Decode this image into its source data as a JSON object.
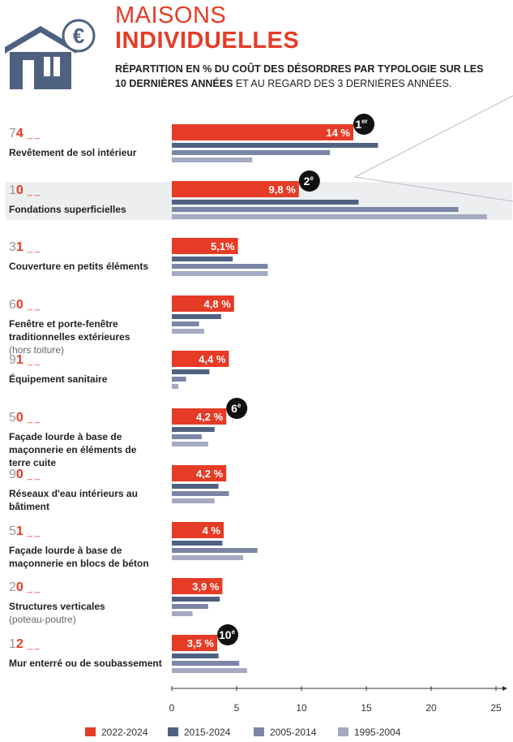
{
  "header": {
    "icon": "house-euro-icon",
    "title_line1": "MAISONS",
    "title_line2": "INDIVIDUELLES",
    "subtitle_bold_1": "RÉPARTITION EN % DU COÛT DES DÉSORDRES PAR TYPOLOGIE SUR LES 10 DERNIÈRES ANNÉES",
    "subtitle_normal_2": " ET AU REGARD DES 3 DERNIÈRES ANNÉES."
  },
  "colors": {
    "accent": "#e63b26",
    "s2015": "#4f6181",
    "s2005": "#7b86a6",
    "s1995": "#a4aac2",
    "highlight_band": "#eceef0",
    "badge": "#111111"
  },
  "chart_data": {
    "type": "bar",
    "orientation": "horizontal",
    "xlim": [
      0,
      25
    ],
    "xticks": [
      "0",
      "5",
      "10",
      "15",
      "20",
      "25"
    ],
    "legend_position": "bottom",
    "series": [
      {
        "name": "2022-2024",
        "color_key": "accent",
        "values": [
          14,
          9.8,
          5.1,
          4.8,
          4.4,
          4.2,
          4.2,
          4,
          3.9,
          3.5
        ]
      },
      {
        "name": "2015-2024",
        "color_key": "s2015",
        "values": [
          15.9,
          14.4,
          4.7,
          3.8,
          2.9,
          3.3,
          3.6,
          3.9,
          3.7,
          3.6
        ]
      },
      {
        "name": "2005-2014",
        "color_key": "s2005",
        "values": [
          12.2,
          22.1,
          7.4,
          2.1,
          1.1,
          2.3,
          4.4,
          6.6,
          2.8,
          5.2
        ]
      },
      {
        "name": "1995-2004",
        "color_key": "s1995",
        "values": [
          6.2,
          24.3,
          7.4,
          2.5,
          0.5,
          2.8,
          3.3,
          5.5,
          1.6,
          5.8
        ]
      }
    ],
    "categories": [
      {
        "code_main": "74",
        "code_suffix": "_ _",
        "label_lines": [
          "Revêtement de sol intérieur"
        ],
        "note": "",
        "value_label": "14 %",
        "rank_badge": "1er",
        "highlight": false
      },
      {
        "code_main": "10",
        "code_suffix": "_ _",
        "label_lines": [
          "Fondations superficielles"
        ],
        "note": "",
        "value_label": "9,8 %",
        "rank_badge": "2e",
        "highlight": true
      },
      {
        "code_main": "31",
        "code_suffix": "_ _",
        "label_lines": [
          "Couverture en petits éléments"
        ],
        "note": "",
        "value_label": "5,1%",
        "rank_badge": "",
        "highlight": false
      },
      {
        "code_main": "60",
        "code_suffix": "_ _",
        "label_lines": [
          "Fenêtre et porte-fenêtre",
          "traditionnelles extérieures"
        ],
        "note": "(hors toiture)",
        "value_label": "4,8 %",
        "rank_badge": "",
        "highlight": false
      },
      {
        "code_main": "91",
        "code_suffix": "_ _",
        "label_lines": [
          "Équipement sanitaire"
        ],
        "note": "",
        "value_label": "4,4 %",
        "rank_badge": "",
        "highlight": false
      },
      {
        "code_main": "50",
        "code_suffix": "_ _",
        "label_lines": [
          "Façade lourde à base de",
          "maçonnerie en éléments de",
          "terre cuite"
        ],
        "note": "",
        "value_label": "4,2 %",
        "rank_badge": "6e",
        "highlight": false
      },
      {
        "code_main": "90",
        "code_suffix": "_ _",
        "label_lines": [
          "Réseaux d'eau intérieurs au",
          "bâtiment"
        ],
        "note": "",
        "value_label": "4,2 %",
        "rank_badge": "",
        "highlight": false
      },
      {
        "code_main": "51",
        "code_suffix": "_ _",
        "label_lines": [
          "Façade lourde à base de",
          "maçonnerie en blocs de béton"
        ],
        "note": "",
        "value_label": "4 %",
        "rank_badge": "",
        "highlight": false
      },
      {
        "code_main": "20",
        "code_suffix": "_ _",
        "label_lines": [
          "Structures verticales"
        ],
        "note": "(poteau-poutre)",
        "value_label": "3,9 %",
        "rank_badge": "",
        "highlight": false
      },
      {
        "code_main": "12",
        "code_suffix": "_ _",
        "label_lines": [
          "Mur enterré ou de soubassement"
        ],
        "note": "",
        "value_label": "3,5 %",
        "rank_badge": "10e",
        "highlight": false
      }
    ]
  }
}
